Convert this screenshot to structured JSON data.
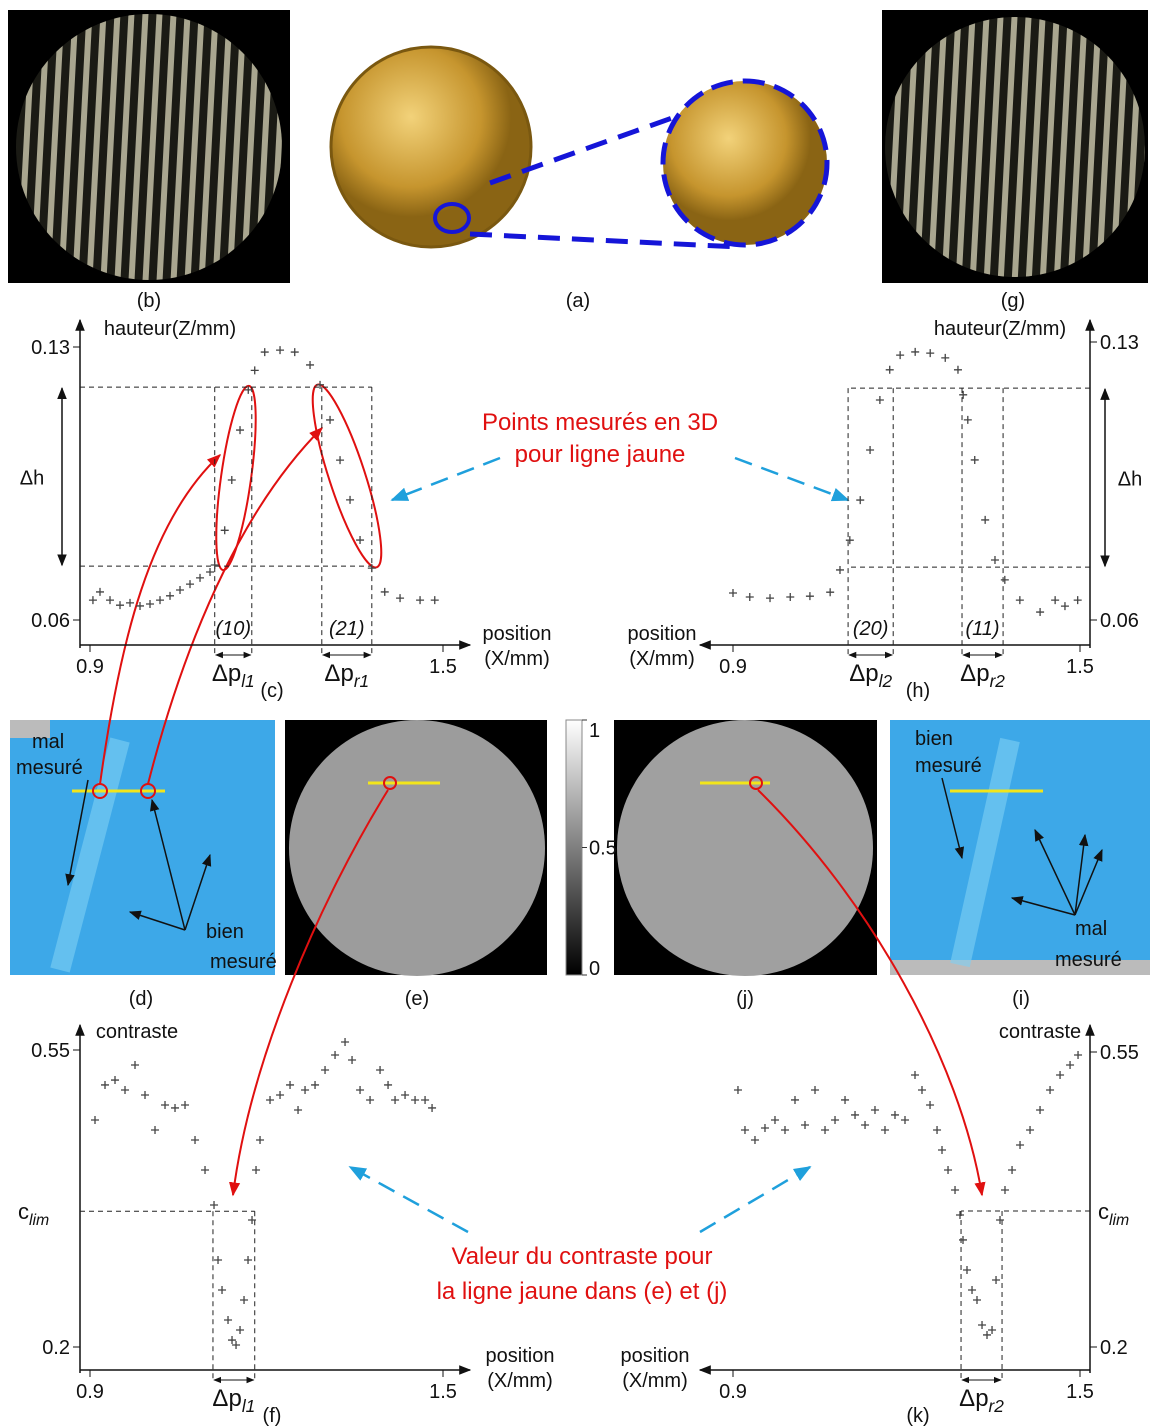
{
  "panels": {
    "a": "(a)",
    "b": "(b)",
    "c": "(c)",
    "d": "(d)",
    "e": "(e)",
    "f": "(f)",
    "g": "(g)",
    "h": "(h)",
    "i": "(i)",
    "j": "(j)",
    "k": "(k)"
  },
  "annotations": {
    "points_3d": [
      "Points mesurés en 3D",
      "pour ligne jaune"
    ],
    "contrast_value": [
      "Valeur du contraste pour",
      "la ligne jaune dans (e) et (j)"
    ],
    "d_bad": [
      "mal",
      "mesuré"
    ],
    "d_good": [
      "bien",
      "mesuré"
    ],
    "i_good": [
      "bien",
      "mesuré"
    ],
    "i_bad": [
      "mal",
      "mesuré"
    ]
  },
  "colorbar": {
    "ylim": [
      0,
      1
    ],
    "ticks": [
      1,
      0.5,
      0
    ]
  },
  "chart_data": [
    {
      "type": "scatter",
      "y_label": "hauteur(Z/mm)",
      "x_label": [
        "position",
        "(X/mm)"
      ],
      "color": "#444444",
      "xlim": [
        0.9,
        1.5
      ],
      "xticks": [
        0.9,
        1.5
      ],
      "ylim": [
        0.06,
        0.13
      ],
      "yticks": [
        0.06,
        0.13
      ],
      "x": [
        0.905,
        0.917,
        0.934,
        0.951,
        0.968,
        0.985,
        1.002,
        1.019,
        1.036,
        1.053,
        1.07,
        1.087,
        1.104,
        1.112,
        1.129,
        1.141,
        1.155,
        1.169,
        1.18,
        1.197,
        1.223,
        1.248,
        1.274,
        1.291,
        1.308,
        1.325,
        1.342,
        1.359,
        1.379,
        1.401,
        1.427,
        1.461,
        1.486
      ],
      "values": [
        0.0651,
        0.0672,
        0.0651,
        0.0638,
        0.0644,
        0.0636,
        0.0641,
        0.0651,
        0.0662,
        0.0677,
        0.0692,
        0.0708,
        0.0723,
        0.0741,
        0.083,
        0.0959,
        0.1087,
        0.119,
        0.124,
        0.1287,
        0.1292,
        0.1287,
        0.1254,
        0.1203,
        0.1113,
        0.101,
        0.0908,
        0.0805,
        0.0733,
        0.0672,
        0.0656,
        0.0651,
        0.0651
      ],
      "ref_lines": [
        0.1197,
        0.0738
      ],
      "delta_label": "Δh",
      "intervals": [
        {
          "x": [
            1.112,
            1.175
          ],
          "count_label": "(10)",
          "label": {
            "base": "Δp",
            "sub": "l1"
          }
        },
        {
          "x": [
            1.294,
            1.379
          ],
          "count_label": "(21)",
          "label": {
            "base": "Δp",
            "sub": "r1"
          }
        }
      ]
    },
    {
      "type": "scatter",
      "y_label": "hauteur(Z/mm)",
      "x_label": [
        "position",
        "(X/mm)"
      ],
      "color": "#444444",
      "xlim": [
        0.9,
        1.5
      ],
      "xticks": [
        0.9,
        1.5
      ],
      "ylim": [
        0.06,
        0.13
      ],
      "yticks": [
        0.06,
        0.13
      ],
      "x": [
        0.9,
        0.929,
        0.964,
        0.999,
        1.033,
        1.068,
        1.085,
        1.102,
        1.12,
        1.137,
        1.154,
        1.171,
        1.189,
        1.215,
        1.241,
        1.267,
        1.289,
        1.298,
        1.306,
        1.318,
        1.336,
        1.353,
        1.37,
        1.396,
        1.431,
        1.457,
        1.474,
        1.496
      ],
      "values": [
        0.0668,
        0.0658,
        0.0655,
        0.0658,
        0.066,
        0.067,
        0.0726,
        0.0801,
        0.0902,
        0.1028,
        0.1154,
        0.123,
        0.1267,
        0.1275,
        0.1272,
        0.126,
        0.123,
        0.1167,
        0.1104,
        0.1003,
        0.0852,
        0.0751,
        0.0701,
        0.065,
        0.062,
        0.065,
        0.0635,
        0.065
      ],
      "ref_lines": [
        0.1184,
        0.0733
      ],
      "delta_label": "Δh",
      "intervals": [
        {
          "x": [
            1.099,
            1.177
          ],
          "count_label": "(20)",
          "label": {
            "base": "Δp",
            "sub": "l2"
          }
        },
        {
          "x": [
            1.296,
            1.367
          ],
          "count_label": "(11)",
          "label": {
            "base": "Δp",
            "sub": "r2"
          }
        }
      ]
    },
    {
      "type": "scatter",
      "y_label": "contraste",
      "x_label": [
        "position",
        "(X/mm)"
      ],
      "color": "#444444",
      "xlim": [
        0.9,
        1.5
      ],
      "xticks": [
        0.9,
        1.5
      ],
      "ylim": [
        0.2,
        0.55
      ],
      "yticks": [
        0.2,
        0.55
      ],
      "x": [
        0.9085,
        0.9255,
        0.9425,
        0.9595,
        0.9765,
        0.9935,
        1.0105,
        1.0275,
        1.0445,
        1.0615,
        1.0785,
        1.0955,
        1.1108,
        1.1176,
        1.1244,
        1.1346,
        1.1414,
        1.1482,
        1.155,
        1.1618,
        1.1686,
        1.1754,
        1.1822,
        1.189,
        1.206,
        1.223,
        1.24,
        1.2536,
        1.2655,
        1.2825,
        1.2995,
        1.3165,
        1.3335,
        1.3454,
        1.359,
        1.376,
        1.393,
        1.4066,
        1.4185,
        1.4355,
        1.4525,
        1.4695,
        1.4814
      ],
      "values": [
        0.4675,
        0.5088,
        0.5146,
        0.5029,
        0.5323,
        0.497,
        0.4557,
        0.4852,
        0.4817,
        0.4852,
        0.4439,
        0.4086,
        0.3673,
        0.3025,
        0.2672,
        0.2318,
        0.2082,
        0.2024,
        0.22,
        0.2554,
        0.3025,
        0.3497,
        0.4086,
        0.4439,
        0.4911,
        0.497,
        0.5088,
        0.4793,
        0.5029,
        0.5088,
        0.5264,
        0.5441,
        0.5594,
        0.5382,
        0.5029,
        0.4911,
        0.5264,
        0.5088,
        0.4911,
        0.497,
        0.4911,
        0.4911,
        0.4817
      ],
      "ref_lines": [
        0.36
      ],
      "ref_label": {
        "base": "c",
        "sub": "lim"
      },
      "intervals": [
        {
          "x": [
            1.109,
            1.18
          ],
          "label": {
            "base": "Δp",
            "sub": "l1"
          }
        }
      ]
    },
    {
      "type": "scatter",
      "y_label": "contraste",
      "x_label": [
        "position",
        "(X/mm)"
      ],
      "color": "#444444",
      "xlim": [
        0.9,
        1.5
      ],
      "xticks": [
        0.9,
        1.5
      ],
      "ylim": [
        0.2,
        0.55
      ],
      "yticks": [
        0.2,
        0.55
      ],
      "x": [
        0.9086,
        0.9207,
        0.938,
        0.9553,
        0.9726,
        0.9899,
        1.0072,
        1.0245,
        1.0418,
        1.0591,
        1.0764,
        1.0937,
        1.111,
        1.1283,
        1.1455,
        1.1628,
        1.1801,
        1.1974,
        1.2147,
        1.2268,
        1.2407,
        1.2528,
        1.2614,
        1.2718,
        1.2839,
        1.2925,
        1.2977,
        1.3046,
        1.3133,
        1.3219,
        1.3306,
        1.3392,
        1.3479,
        1.3548,
        1.3617,
        1.3703,
        1.3825,
        1.3963,
        1.4136,
        1.4309,
        1.4482,
        1.4655,
        1.4828,
        1.4966
      ],
      "values": [
        0.5049,
        0.4575,
        0.4456,
        0.4598,
        0.4693,
        0.4575,
        0.4931,
        0.4634,
        0.5049,
        0.4575,
        0.4693,
        0.4931,
        0.4753,
        0.4634,
        0.4812,
        0.4575,
        0.4753,
        0.4693,
        0.5227,
        0.5049,
        0.4871,
        0.4575,
        0.4337,
        0.41,
        0.3863,
        0.3566,
        0.327,
        0.2914,
        0.2676,
        0.2558,
        0.2261,
        0.2143,
        0.2202,
        0.2795,
        0.3507,
        0.3863,
        0.41,
        0.4397,
        0.4575,
        0.4812,
        0.5049,
        0.5227,
        0.5346,
        0.5464
      ],
      "ref_lines": [
        0.3614
      ],
      "ref_label": {
        "base": "c",
        "sub": "lim"
      },
      "intervals": [
        {
          "x": [
            1.2943,
            1.3652
          ],
          "label": {
            "base": "Δp",
            "sub": "r2"
          }
        }
      ]
    }
  ]
}
